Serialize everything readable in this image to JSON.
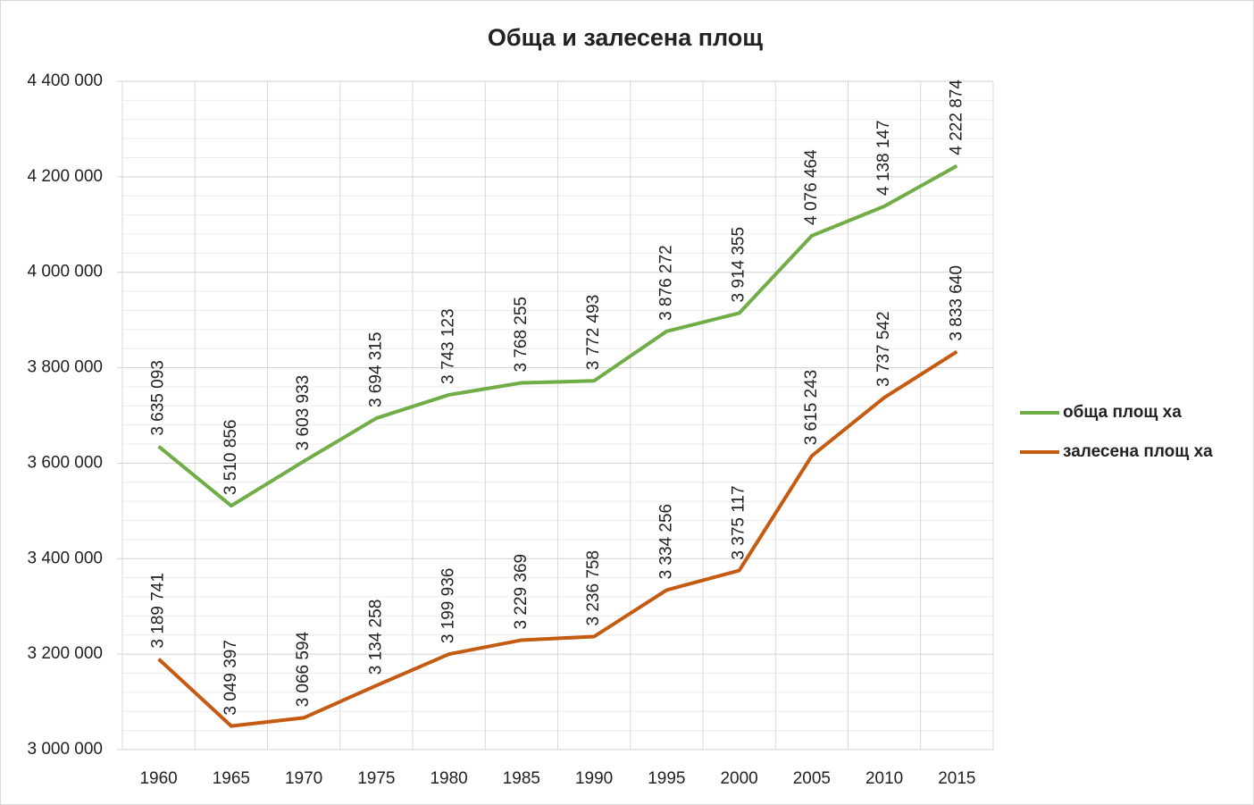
{
  "chart_data": {
    "type": "line",
    "title": "Обща и залесена площ",
    "categories": [
      "1960",
      "1965",
      "1970",
      "1975",
      "1980",
      "1985",
      "1990",
      "1995",
      "2000",
      "2005",
      "2010",
      "2015"
    ],
    "series": [
      {
        "name": "обща площ ха",
        "color": "#70ad47",
        "values": [
          3635093,
          3510856,
          3603933,
          3694315,
          3743123,
          3768255,
          3772493,
          3876272,
          3914355,
          4076464,
          4138147,
          4222874
        ],
        "value_labels": [
          "3 635 093",
          "3 510 856",
          "3 603 933",
          "3 694 315",
          "3 743 123",
          "3 768 255",
          "3 772 493",
          "3 876 272",
          "3 914 355",
          "4 076 464",
          "4 138 147",
          "4 222 874"
        ]
      },
      {
        "name": "залесена площ ха",
        "color": "#c55a11",
        "values": [
          3189741,
          3049397,
          3066594,
          3134258,
          3199936,
          3229369,
          3236758,
          3334256,
          3375117,
          3615243,
          3737542,
          3833640
        ],
        "value_labels": [
          "3 189 741",
          "3 049 397",
          "3 066 594",
          "3 134 258",
          "3 199 936",
          "3 229 369",
          "3 236 758",
          "3 334 256",
          "3 375 117",
          "3 615 243",
          "3 737 542",
          "3 833 640"
        ]
      }
    ],
    "ylim": [
      3000000,
      4400000
    ],
    "yticks": [
      {
        "value": 3000000,
        "label": "3 000 000"
      },
      {
        "value": 3200000,
        "label": "3 200 000"
      },
      {
        "value": 3400000,
        "label": "3 400 000"
      },
      {
        "value": 3600000,
        "label": "3 600 000"
      },
      {
        "value": 3800000,
        "label": "3 800 000"
      },
      {
        "value": 4000000,
        "label": "4 000 000"
      },
      {
        "value": 4200000,
        "label": "4 200 000"
      },
      {
        "value": 4400000,
        "label": "4 400 000"
      }
    ],
    "grid": true,
    "legend": "right"
  }
}
